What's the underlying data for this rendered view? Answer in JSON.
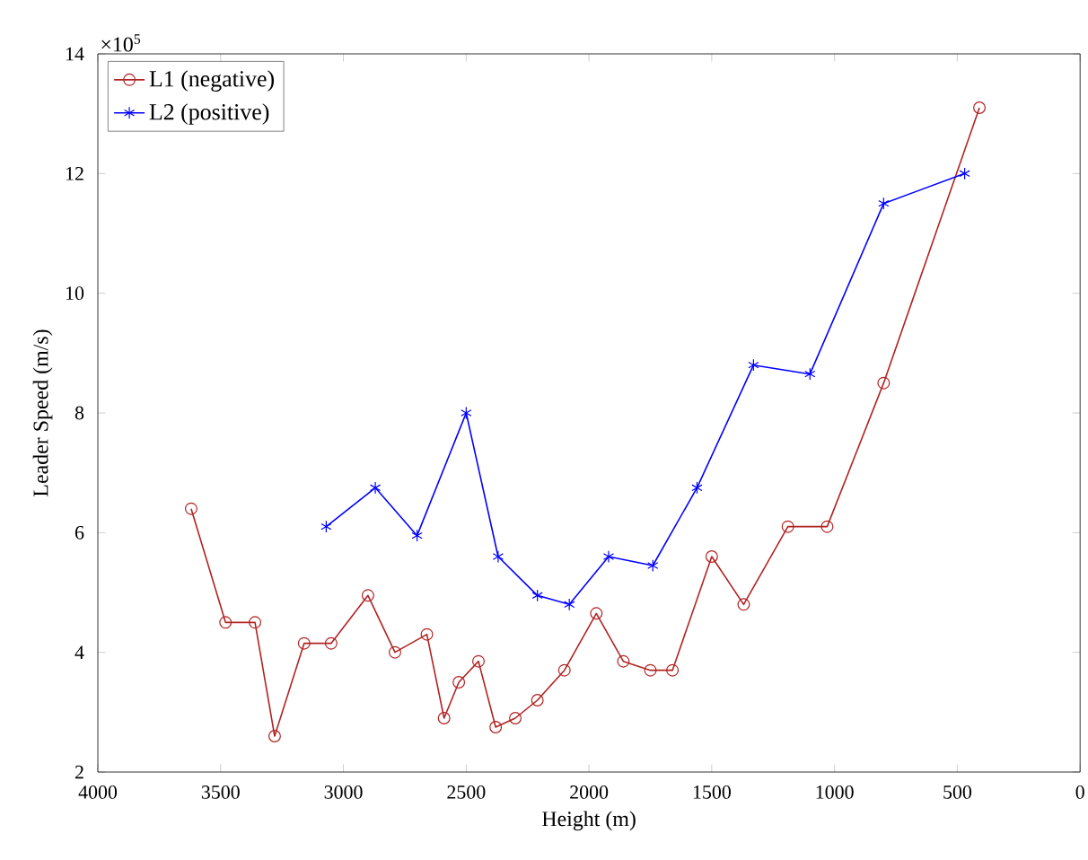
{
  "chart_data": {
    "type": "line",
    "xlabel": "Height (m)",
    "ylabel": "Leader Speed (m/s)",
    "annotations": [
      "×10$^{5}$"
    ],
    "xlim": [
      4000,
      0
    ],
    "xticks": [
      4000,
      3500,
      3000,
      2500,
      2000,
      1500,
      1000,
      500,
      0
    ],
    "ylim": [
      2,
      14
    ],
    "yticks": [
      2,
      4,
      6,
      8,
      10,
      12,
      14
    ],
    "legend": "top left",
    "line_style": "solid",
    "series": [
      {
        "name": "L1 (negative)",
        "color": "#b22222",
        "marker": "circle",
        "x": [
          3620,
          3480,
          3360,
          3280,
          3160,
          3050,
          2900,
          2790,
          2660,
          2590,
          2530,
          2450,
          2380,
          2300,
          2210,
          2100,
          1970,
          1860,
          1750,
          1660,
          1500,
          1370,
          1190,
          1030,
          800,
          410
        ],
        "values": [
          6.4,
          4.5,
          4.5,
          2.6,
          4.15,
          4.15,
          4.95,
          4.0,
          4.3,
          2.9,
          3.5,
          3.85,
          2.75,
          2.9,
          3.2,
          3.7,
          4.65,
          3.85,
          3.7,
          3.7,
          5.6,
          4.8,
          6.1,
          6.1,
          8.5,
          13.1
        ]
      },
      {
        "name": "L2 (positive)",
        "color": "#0000ff",
        "marker": "cross",
        "x": [
          3070,
          2870,
          2700,
          2500,
          2370,
          2210,
          2080,
          1920,
          1740,
          1560,
          1330,
          1100,
          800,
          470
        ],
        "values": [
          6.1,
          6.75,
          5.95,
          8.0,
          5.6,
          4.95,
          4.8,
          5.6,
          5.45,
          6.75,
          8.8,
          8.65,
          11.5,
          12.0
        ]
      }
    ]
  }
}
